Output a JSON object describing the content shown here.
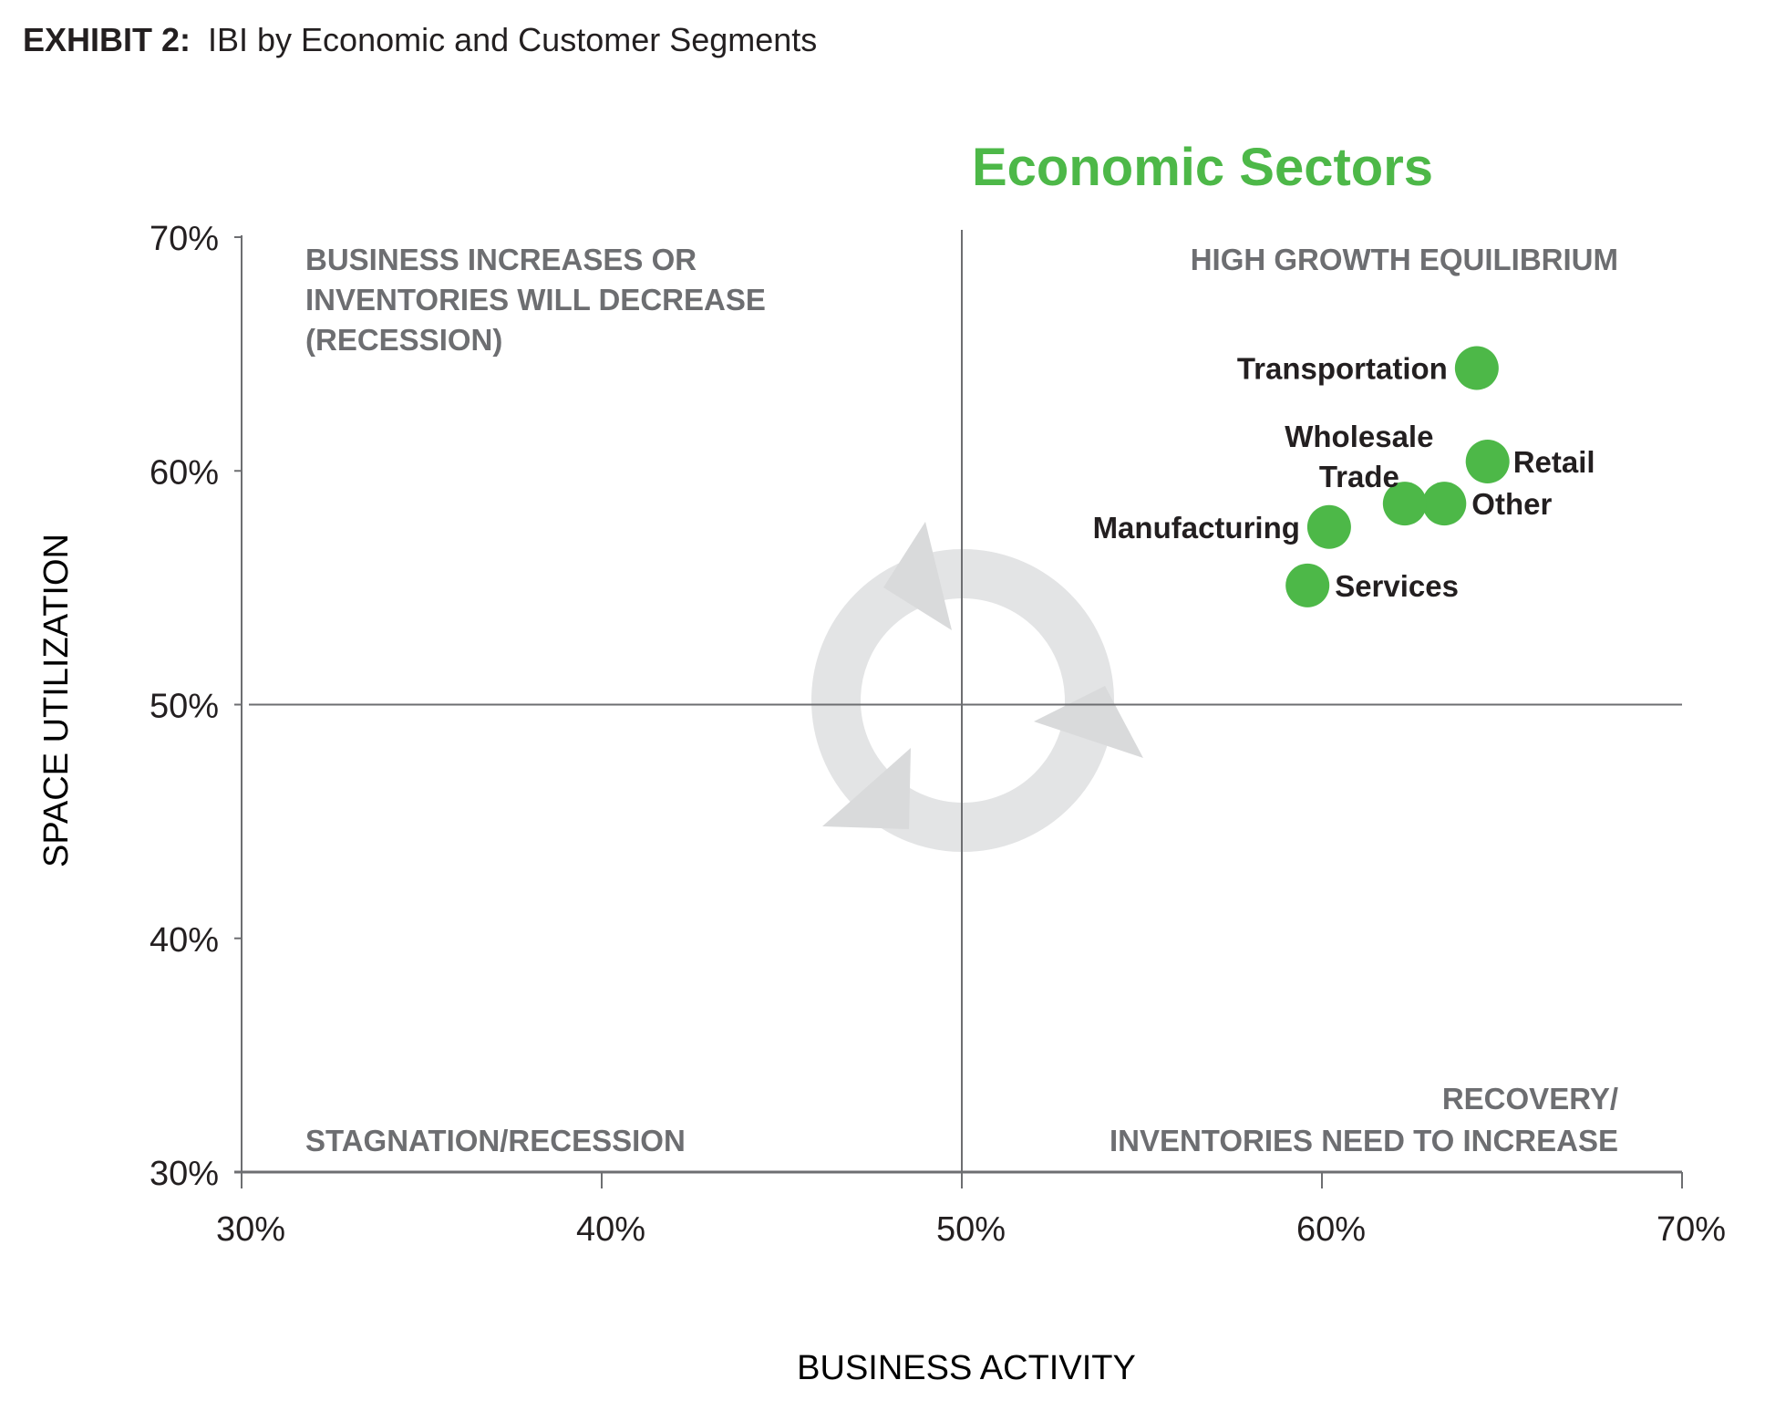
{
  "header": {
    "exhibit": "EXHIBIT 2:",
    "title": "IBI by Economic and Customer Segments"
  },
  "chart_data": {
    "type": "scatter",
    "title": "Economic Sectors",
    "xlabel": "BUSINESS ACTIVITY",
    "ylabel": "SPACE UTILIZATION",
    "xlim": [
      30,
      70
    ],
    "ylim": [
      30,
      70
    ],
    "x_ticks": [
      "30%",
      "40%",
      "50%",
      "60%",
      "70%"
    ],
    "y_ticks": [
      "30%",
      "40%",
      "50%",
      "60%",
      "70%"
    ],
    "divider": {
      "x": 50,
      "y": 50
    },
    "quadrants": {
      "top_left": [
        "BUSINESS INCREASES OR",
        "INVENTORIES WILL DECREASE",
        "(RECESSION)"
      ],
      "top_right": [
        "HIGH GROWTH EQUILIBRIUM"
      ],
      "bottom_left": [
        "STAGNATION/RECESSION"
      ],
      "bottom_right": [
        "RECOVERY/",
        "INVENTORIES NEED TO INCREASE"
      ]
    },
    "points": [
      {
        "name": "Transportation",
        "lines": [
          "Transportation"
        ],
        "x": 64.3,
        "y": 64.4,
        "label_side": "left"
      },
      {
        "name": "Retail",
        "lines": [
          "Retail"
        ],
        "x": 64.6,
        "y": 60.4,
        "label_side": "right"
      },
      {
        "name": "Other",
        "lines": [
          "Other"
        ],
        "x": 63.4,
        "y": 58.6,
        "label_side": "right"
      },
      {
        "name": "Wholesale Trade",
        "lines": [
          "Wholesale",
          "Trade"
        ],
        "x": 62.3,
        "y": 58.6,
        "label_side": "above"
      },
      {
        "name": "Manufacturing",
        "lines": [
          "Manufacturing"
        ],
        "x": 60.2,
        "y": 57.6,
        "label_side": "left"
      },
      {
        "name": "Services",
        "lines": [
          "Services"
        ],
        "x": 59.6,
        "y": 55.1,
        "label_side": "right"
      }
    ],
    "colors": {
      "point": "#4db848",
      "title": "#4db848",
      "quadrant_text": "#6d6e71",
      "cycle": "#e1e2e3"
    }
  }
}
